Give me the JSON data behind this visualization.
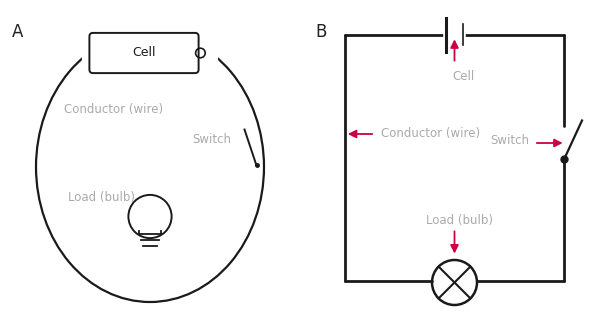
{
  "bg_color": "#ffffff",
  "line_color": "#1a1a1a",
  "arrow_color": "#cc0044",
  "text_color": "#aaaaaa",
  "label_color": "#222222",
  "label_A": "A",
  "label_B": "B",
  "cell_label": "Cell",
  "wire_label": "Conductor (wire)",
  "switch_label": "Switch",
  "bulb_label": "Load (bulb)",
  "font_size": 8.5
}
